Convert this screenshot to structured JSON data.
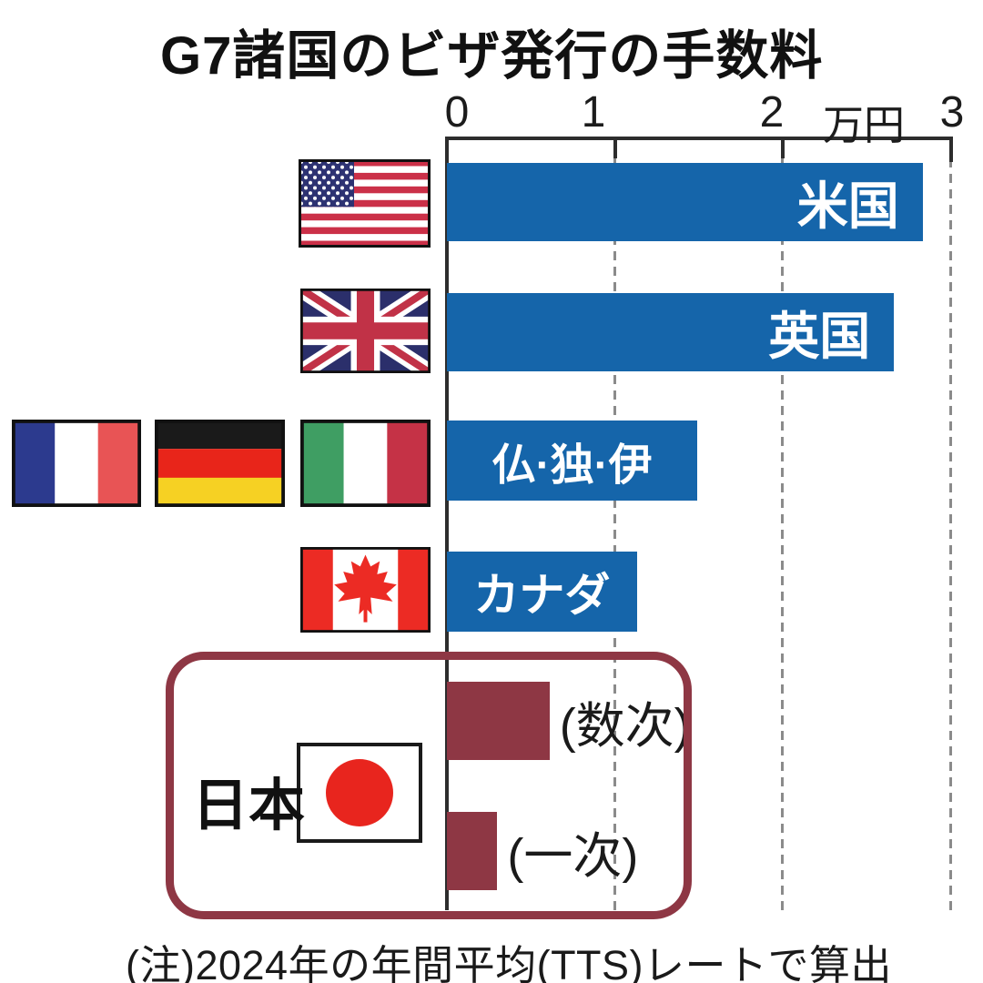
{
  "title": "G7諸国のビザ発行の手数料",
  "axis": {
    "tick_labels": [
      "0",
      "1",
      "2",
      "3"
    ],
    "unit_label": "万円"
  },
  "note": "(注)2024年の年間平均(TTS)レートで算出",
  "colors": {
    "bar_blue": "#1565aa",
    "japan_red": "#8e3744",
    "gridline_gray": "#8b8b8b"
  },
  "japan_group": {
    "label": "日本",
    "flag_icon": "japan-flag-icon"
  },
  "chart_data": {
    "type": "bar",
    "orientation": "horizontal",
    "title": "G7諸国のビザ発行の手数料",
    "unit": "万円",
    "xlim": [
      0,
      3
    ],
    "x_ticks": [
      0,
      1,
      2,
      3
    ],
    "gridlines": "dashed vertical at 1, 2 and 3",
    "legend_position": "none",
    "note": "(注)2024年の年間平均(TTS)レートで算出",
    "bars": [
      {
        "country": "米国",
        "value": 2.83,
        "color": "#1565aa",
        "flag_icons": [
          "usa-flag-icon"
        ]
      },
      {
        "country": "英国",
        "value": 2.66,
        "color": "#1565aa",
        "flag_icons": [
          "uk-flag-icon"
        ]
      },
      {
        "country": "仏·独·伊",
        "value": 1.49,
        "color": "#1565aa",
        "flag_icons": [
          "france-flag-icon",
          "germany-flag-icon",
          "italy-flag-icon"
        ]
      },
      {
        "country": "カナダ",
        "value": 1.13,
        "color": "#1565aa",
        "flag_icons": [
          "canada-flag-icon"
        ]
      },
      {
        "country": "日本",
        "entry": "(数次)",
        "value": 0.61,
        "color": "#8e3744",
        "flag_icons": [
          "japan-flag-icon"
        ]
      },
      {
        "country": "日本",
        "entry": "(一次)",
        "value": 0.3,
        "color": "#8e3744",
        "flag_icons": [
          "japan-flag-icon"
        ]
      }
    ]
  }
}
